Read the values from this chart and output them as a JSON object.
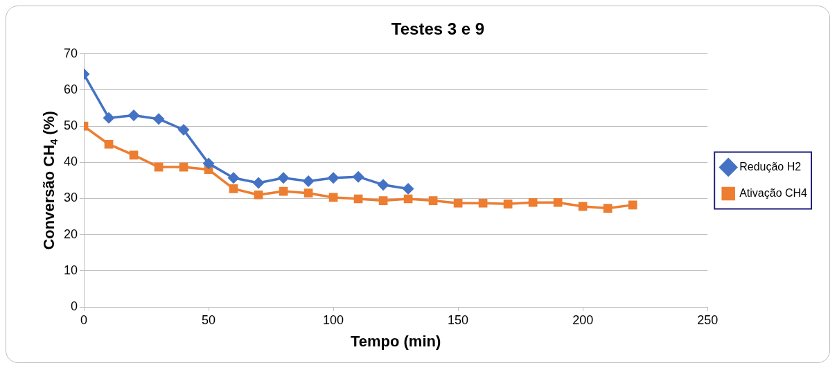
{
  "chart_data": {
    "type": "line",
    "title": "Testes 3 e 9",
    "xlabel": "Tempo (min)",
    "ylabel": "Conversão CH$_{4}$ (%)",
    "xlim": [
      0,
      250
    ],
    "xticks": [
      0,
      50,
      100,
      150,
      200,
      250
    ],
    "ylim": [
      0,
      70
    ],
    "yticks": [
      0,
      10,
      20,
      30,
      40,
      50,
      60,
      70
    ],
    "grid": "y",
    "legend": "right",
    "series": [
      {
        "name": "Redução H2",
        "color": "#4472c4",
        "marker": "diamond",
        "x": [
          0,
          10,
          20,
          30,
          40,
          50,
          60,
          70,
          80,
          90,
          100,
          110,
          120,
          130
        ],
        "values": [
          64.4,
          52.3,
          53,
          52,
          49,
          39.7,
          35.7,
          34.3,
          35.7,
          34.8,
          35.7,
          36,
          33.8,
          32.7
        ]
      },
      {
        "name": "Ativação CH4",
        "color": "#ed7d31",
        "marker": "square",
        "x": [
          0,
          10,
          20,
          30,
          40,
          50,
          60,
          70,
          80,
          90,
          100,
          110,
          120,
          130,
          140,
          150,
          160,
          170,
          180,
          190,
          200,
          210,
          220
        ],
        "values": [
          50,
          45,
          42,
          38.7,
          38.7,
          38,
          32.7,
          31,
          32,
          31.5,
          30.3,
          29.9,
          29.4,
          29.9,
          29.4,
          28.7,
          28.7,
          28.5,
          28.9,
          28.9,
          27.8,
          27.3,
          28.2
        ]
      }
    ]
  }
}
